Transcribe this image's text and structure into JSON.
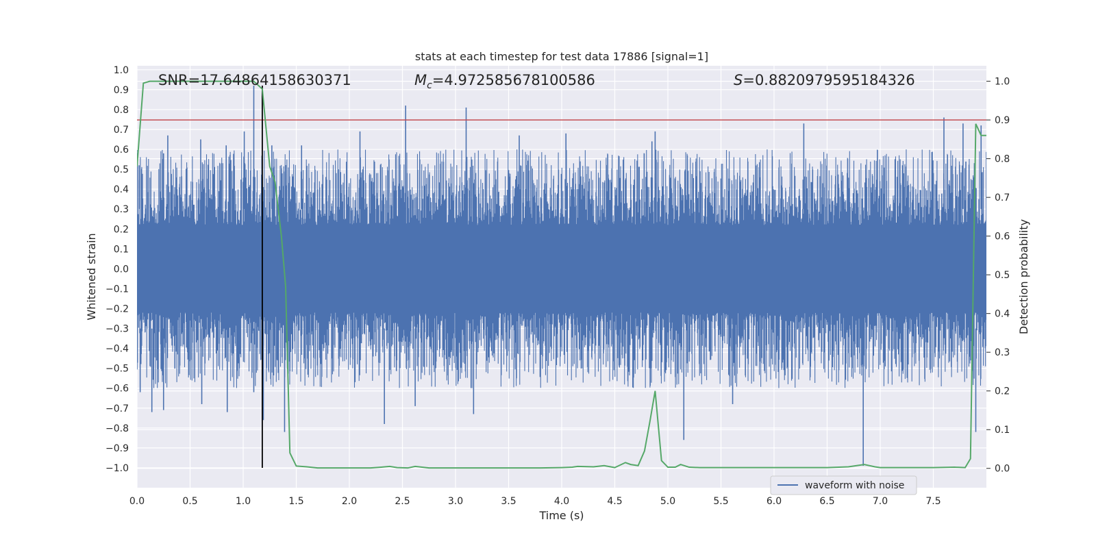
{
  "chart_data": {
    "type": "line",
    "title": "stats at each timestep for test data 17886 [signal=1]",
    "xlabel": "Time (s)",
    "ylabel": "Whitened strain",
    "y2label": "Detection probability",
    "xlim": [
      0,
      8
    ],
    "ylim": [
      -1.1,
      1.02
    ],
    "y2lim": [
      -0.05,
      1.04
    ],
    "xticks": [
      "0.0",
      "0.5",
      "1.0",
      "1.5",
      "2.0",
      "2.5",
      "3.0",
      "3.5",
      "4.0",
      "4.5",
      "5.0",
      "5.5",
      "6.0",
      "6.5",
      "7.0",
      "7.5"
    ],
    "yticks": [
      "1.0",
      "0.9",
      "0.8",
      "0.7",
      "0.6",
      "0.5",
      "0.4",
      "0.3",
      "0.2",
      "0.1",
      "0.0",
      "−0.1",
      "−0.2",
      "−0.3",
      "−0.4",
      "−0.5",
      "−0.6",
      "−0.7",
      "−0.8",
      "−0.9",
      "−1.0"
    ],
    "y2ticks": [
      "1.0",
      "0.9",
      "0.8",
      "0.7",
      "0.6",
      "0.5",
      "0.4",
      "0.3",
      "0.2",
      "0.1",
      "0.0"
    ],
    "annotations": {
      "snr": "SNR=17.64864158630371",
      "mc_symbol": "M",
      "mc_sub": "c",
      "mc_value": "=4.972585678100586",
      "s_symbol": "S",
      "s_value": "=0.8820979595184326"
    },
    "legend": {
      "label": "waveform with noise",
      "location": "lower-right"
    },
    "series": [
      {
        "name": "waveform with noise",
        "axis": "left",
        "color": "#4c72b0",
        "style": "dense noise, envelope approx ±0.45 with spikes",
        "spikes": [
          {
            "x": 0.02,
            "y": 0.52
          },
          {
            "x": 0.03,
            "y": -0.62
          },
          {
            "x": 0.14,
            "y": -0.72
          },
          {
            "x": 0.25,
            "y": 0.58
          },
          {
            "x": 0.25,
            "y": -0.71
          },
          {
            "x": 0.29,
            "y": 0.67
          },
          {
            "x": 0.6,
            "y": 0.65
          },
          {
            "x": 0.61,
            "y": -0.68
          },
          {
            "x": 0.84,
            "y": 0.62
          },
          {
            "x": 0.85,
            "y": -0.72
          },
          {
            "x": 1.01,
            "y": 0.69
          },
          {
            "x": 1.1,
            "y": 0.92
          },
          {
            "x": 1.1,
            "y": -0.62
          },
          {
            "x": 1.19,
            "y": -0.76
          },
          {
            "x": 1.27,
            "y": 0.62
          },
          {
            "x": 1.39,
            "y": -0.82
          },
          {
            "x": 1.55,
            "y": 0.62
          },
          {
            "x": 2.1,
            "y": 0.69
          },
          {
            "x": 2.33,
            "y": -0.78
          },
          {
            "x": 2.53,
            "y": 0.82
          },
          {
            "x": 2.62,
            "y": -0.69
          },
          {
            "x": 3.1,
            "y": 0.81
          },
          {
            "x": 3.17,
            "y": -0.73
          },
          {
            "x": 3.6,
            "y": 0.67
          },
          {
            "x": 4.04,
            "y": 0.68
          },
          {
            "x": 4.85,
            "y": 0.64
          },
          {
            "x": 4.88,
            "y": 0.69
          },
          {
            "x": 5.15,
            "y": -0.86
          },
          {
            "x": 5.61,
            "y": -0.68
          },
          {
            "x": 6.28,
            "y": 0.73
          },
          {
            "x": 6.84,
            "y": -0.99
          },
          {
            "x": 7.6,
            "y": 0.76
          },
          {
            "x": 7.78,
            "y": 0.73
          },
          {
            "x": 7.9,
            "y": -0.82
          },
          {
            "x": 7.95,
            "y": 0.72
          }
        ]
      },
      {
        "name": "",
        "axis": "right",
        "color": "#55a868",
        "x": [
          0.0,
          0.06,
          0.12,
          0.5,
          1.0,
          1.1,
          1.18,
          1.25,
          1.3,
          1.36,
          1.4,
          1.44,
          1.5,
          1.6,
          1.7,
          2.0,
          2.2,
          2.3,
          2.38,
          2.45,
          2.55,
          2.62,
          2.75,
          3.0,
          3.5,
          3.8,
          4.0,
          4.1,
          4.15,
          4.3,
          4.4,
          4.5,
          4.6,
          4.65,
          4.72,
          4.78,
          4.83,
          4.88,
          4.94,
          5.0,
          5.07,
          5.12,
          5.2,
          5.3,
          5.5,
          6.0,
          6.5,
          6.7,
          6.8,
          6.85,
          6.95,
          7.0,
          7.2,
          7.5,
          7.7,
          7.8,
          7.85,
          7.9,
          7.95,
          8.0
        ],
        "y": [
          0.78,
          0.995,
          1.0,
          1.0,
          1.0,
          1.0,
          0.98,
          0.78,
          0.74,
          0.6,
          0.47,
          0.04,
          0.006,
          0.004,
          0.001,
          0.001,
          0.001,
          0.003,
          0.005,
          0.002,
          0.001,
          0.005,
          0.001,
          0.001,
          0.001,
          0.001,
          0.002,
          0.003,
          0.005,
          0.004,
          0.007,
          0.002,
          0.015,
          0.01,
          0.007,
          0.045,
          0.12,
          0.2,
          0.02,
          0.003,
          0.003,
          0.01,
          0.003,
          0.002,
          0.002,
          0.002,
          0.002,
          0.004,
          0.008,
          0.01,
          0.004,
          0.002,
          0.002,
          0.002,
          0.003,
          0.002,
          0.025,
          0.89,
          0.86,
          0.86
        ]
      }
    ],
    "threshold": {
      "axis": "right",
      "value": 0.9,
      "color": "#c44e52"
    },
    "vline": {
      "x": 1.18,
      "ymin": -1.0,
      "ymax": 0.92,
      "color": "#000000"
    }
  }
}
